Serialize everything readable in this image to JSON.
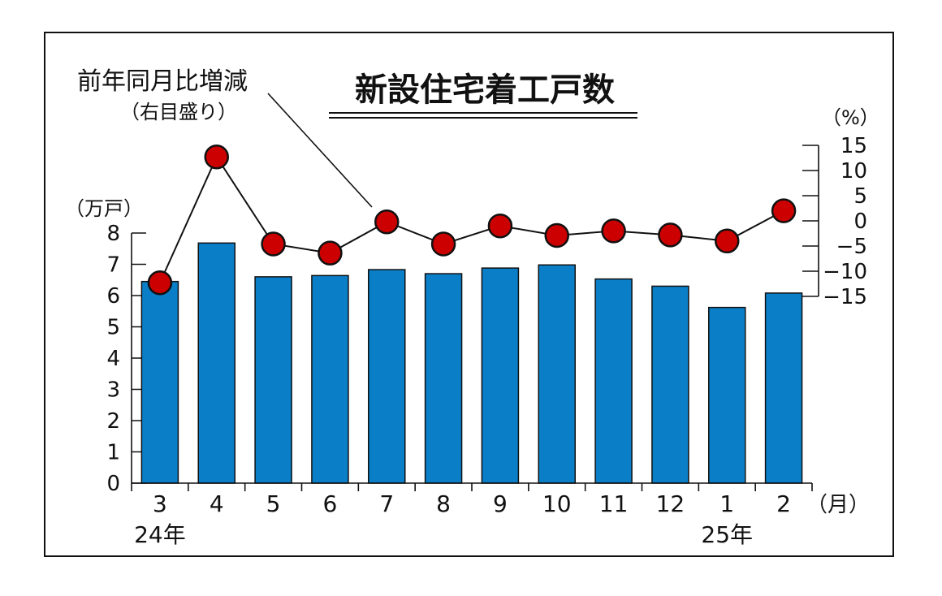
{
  "chart_data": {
    "type": "bar",
    "title": "新設住宅着工戸数",
    "categories": [
      "3",
      "4",
      "5",
      "6",
      "7",
      "8",
      "9",
      "10",
      "11",
      "12",
      "1",
      "2"
    ],
    "x_unit": "（月）",
    "year_labels": [
      {
        "category": "3",
        "label": "24年"
      },
      {
        "category": "1",
        "label": "25年"
      }
    ],
    "left_axis": {
      "unit": "（万戸）",
      "ylim": [
        0,
        8
      ],
      "ticks": [
        0,
        1,
        2,
        3,
        4,
        5,
        6,
        7,
        8
      ]
    },
    "right_axis": {
      "unit": "（%）",
      "ylim": [
        -15,
        15
      ],
      "ticks": [
        15,
        10,
        5,
        0,
        -5,
        -10,
        -15
      ],
      "tick_labels": [
        "15",
        "10",
        "5",
        "0",
        "−5",
        "−10",
        "−15"
      ]
    },
    "series": [
      {
        "kind": "bar",
        "axis": "left",
        "values": [
          6.45,
          7.68,
          6.6,
          6.64,
          6.83,
          6.7,
          6.88,
          6.98,
          6.53,
          6.3,
          5.62,
          6.08
        ]
      },
      {
        "kind": "line",
        "axis": "right",
        "name": "前年同月比増減",
        "name_note": "（右目盛り）",
        "values": [
          -12.3,
          12.7,
          -4.6,
          -6.4,
          -0.2,
          -4.6,
          -1.0,
          -2.9,
          -2.0,
          -2.8,
          -4.0,
          2.0
        ]
      }
    ],
    "colors": {
      "bar": "#0a7fc8",
      "marker": "#cc0000",
      "line": "#111111"
    },
    "grid": false
  }
}
